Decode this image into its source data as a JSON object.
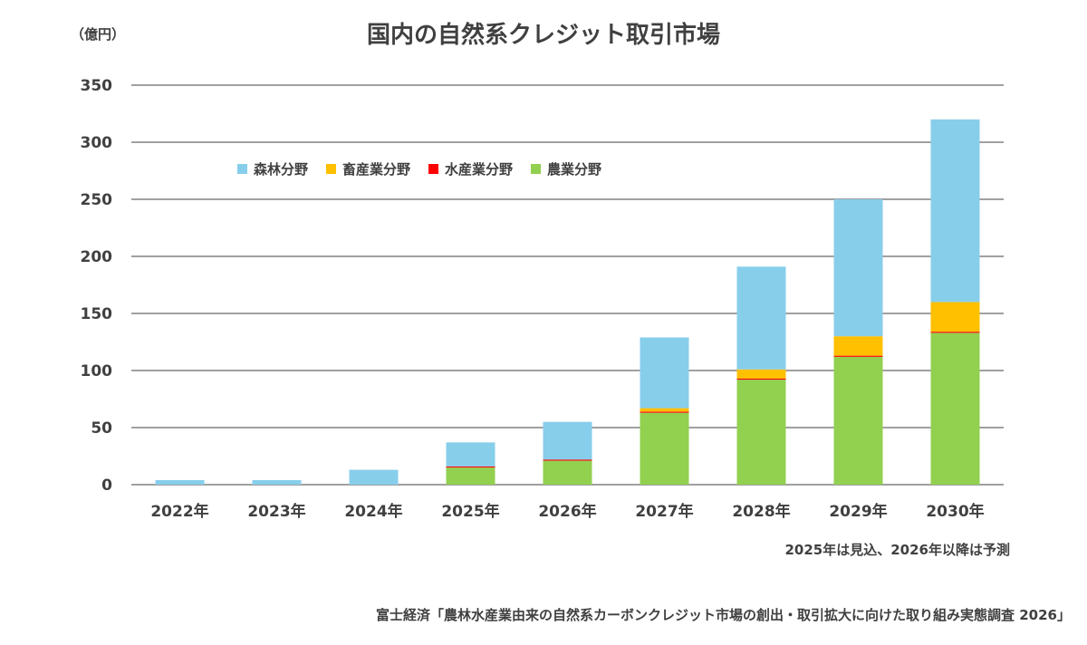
{
  "title": "国内の自然系クレジット取引市場",
  "unit_label": "（億円）",
  "note": "2025年は見込、2026年以降は予測",
  "source": "富士経済「農林水産業由来の自然系カーボンクレジット市場の創出・取引拡大に向けた取り組み実態調査 2026」",
  "colors": {
    "forest": "#87CEEB",
    "livestock": "#FFC000",
    "fishery": "#FF0000",
    "agriculture": "#92D050",
    "gridline": "#404040",
    "axis_text": "#404040"
  },
  "chart_data": {
    "type": "bar",
    "stacked": true,
    "categories": [
      "2022年",
      "2023年",
      "2024年",
      "2025年",
      "2026年",
      "2027年",
      "2028年",
      "2029年",
      "2030年"
    ],
    "series": [
      {
        "name": "農業分野",
        "color": "#92D050",
        "values": [
          0,
          0,
          0,
          15,
          21,
          63,
          92,
          112,
          133
        ]
      },
      {
        "name": "水産業分野",
        "color": "#FF0000",
        "values": [
          0,
          0,
          0,
          1,
          1,
          1,
          1,
          1,
          1
        ]
      },
      {
        "name": "畜産業分野",
        "color": "#FFC000",
        "values": [
          0,
          0,
          0,
          0,
          0,
          3,
          8,
          17,
          26
        ]
      },
      {
        "name": "森林分野",
        "color": "#87CEEB",
        "values": [
          4,
          4,
          13,
          21,
          33,
          62,
          90,
          120,
          160
        ]
      }
    ],
    "legend_order": [
      "森林分野",
      "畜産業分野",
      "水産業分野",
      "農業分野"
    ],
    "ylim": [
      0,
      350
    ],
    "yticks": [
      0,
      50,
      100,
      150,
      200,
      250,
      300,
      350
    ],
    "ytick_labels": [
      "0",
      "50",
      "100",
      "150",
      "200",
      "250",
      "300",
      "350"
    ],
    "xlabel": "",
    "ylabel": "",
    "grid": true,
    "legend_position": "top-left"
  }
}
